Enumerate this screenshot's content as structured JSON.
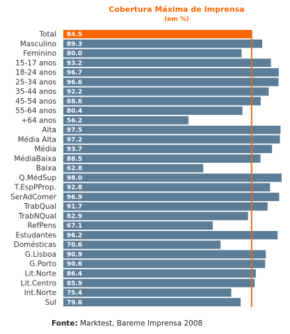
{
  "chart_data": {
    "type": "bar",
    "orientation": "horizontal",
    "title": "Cobertura Máxima de Imprensa",
    "subtitle": "(em %)",
    "categories": [
      "Total",
      "Masculino",
      "Feminino",
      "15-17 anos",
      "18-24 anos",
      "25-34 anos",
      "35-44 anos",
      "45-54 anos",
      "55-64 anos",
      "+64 anos",
      "Alta",
      "Média Alta",
      "Média",
      "MédiaBaixa",
      "Baixa",
      "Q.MédSup",
      "T.EspPProp.",
      "SerAdComer",
      "TrabQual",
      "TrabNQual",
      "RefPens",
      "Estudantes",
      "Domésticas",
      "G.Lisboa",
      "G.Porto",
      "Lit.Norte",
      "Lit.Centro",
      "Int.Norte",
      "Sul"
    ],
    "values": [
      84.5,
      89.3,
      80.0,
      93.2,
      96.7,
      96.6,
      92.2,
      88.6,
      80.4,
      56.2,
      97.5,
      97.2,
      93.7,
      88.5,
      62.8,
      98.0,
      92.8,
      96.9,
      91.7,
      82.9,
      67.1,
      96.2,
      70.6,
      90.9,
      90.6,
      86.4,
      85.9,
      75.4,
      79.6
    ],
    "value_labels": [
      "84.5",
      "89.3",
      "80.0",
      "93.2",
      "96.7",
      "96.6",
      "92.2",
      "88.6",
      "80.4",
      "56.2",
      "97.5",
      "97.2",
      "93.7",
      "88.5",
      "62.8",
      "98.0",
      "92.8",
      "96.9",
      "91.7",
      "82.9",
      "67.1",
      "96.2",
      "70.6",
      "90.9",
      "90.6",
      "86.4",
      "85.9",
      "75.4",
      "79.6"
    ],
    "highlight_index": 0,
    "reference_line_value": 84.5,
    "xlim": [
      0,
      98
    ],
    "grid": false,
    "legend": "none",
    "colors": {
      "bar": "#5b7d97",
      "highlight": "#ff6600",
      "title": "#ff6600",
      "reference_line": "#e0701f"
    }
  },
  "source": {
    "label": "Fonte:",
    "text": " Marktest, Bareme Imprensa 2008"
  }
}
